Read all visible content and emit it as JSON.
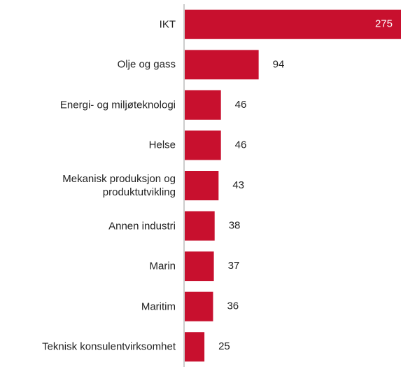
{
  "chart_data": {
    "type": "bar",
    "orientation": "horizontal",
    "categories": [
      "IKT",
      "Olje og gass",
      "Energi- og miljøteknologi",
      "Helse",
      "Mekanisk produksjon og produktutvikling",
      "Annen industri",
      "Marin",
      "Maritim",
      "Teknisk konsulentvirksomhet"
    ],
    "values": [
      275,
      94,
      46,
      46,
      43,
      38,
      37,
      36,
      25
    ],
    "color": "#c8102e",
    "xlim": [
      0,
      275
    ]
  }
}
